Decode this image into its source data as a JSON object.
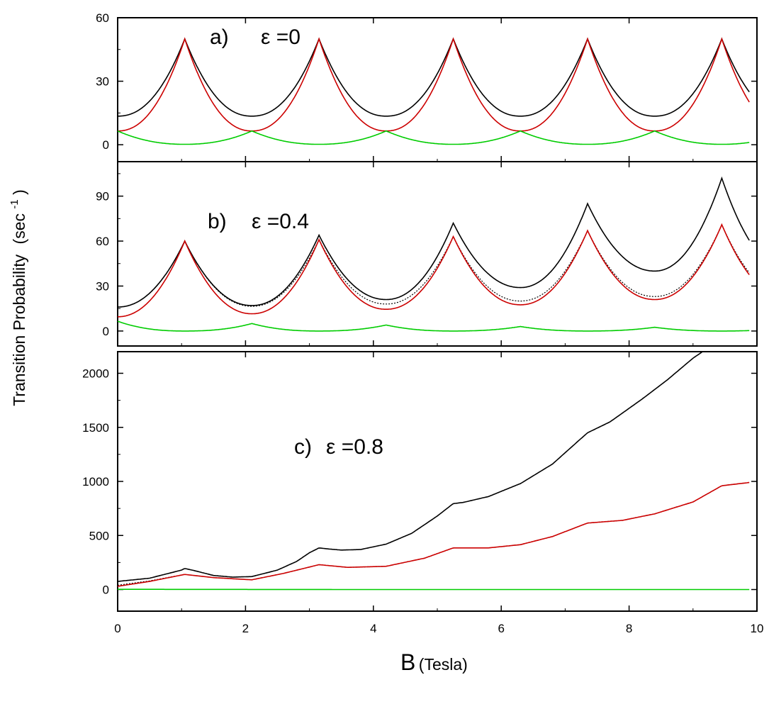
{
  "figure": {
    "ylabel": "Transition Probability",
    "ylabel_unit_open": "(sec",
    "ylabel_unit_exp": "-1",
    "ylabel_unit_close": ")",
    "xlabel_main": "B",
    "xlabel_unit": "(Tesla)"
  },
  "chart_data": [
    {
      "type": "line",
      "panel": "a",
      "label_letter": "a)",
      "label_eps": "ε =0",
      "xlim": [
        0,
        10
      ],
      "ylim": [
        -8,
        60
      ],
      "yticks": [
        0,
        30,
        60
      ],
      "ytick_labels": [
        "0",
        "30",
        "60"
      ],
      "xticks": [
        0,
        2,
        4,
        6,
        8,
        10
      ],
      "x_range": [
        0,
        9.88
      ],
      "resonances": [
        1.05,
        3.15,
        5.25,
        7.35,
        9.45
      ],
      "crossovers": [
        0,
        2.1,
        4.2,
        6.3,
        8.4
      ],
      "series": [
        {
          "color": "#000000",
          "style": "solid",
          "min": 13.5,
          "max": 50
        },
        {
          "color": "#cc0000",
          "style": "solid",
          "min": 6.5,
          "max": 50
        },
        {
          "color": "#00cc00",
          "style": "solid",
          "min": 0.2,
          "max": 6.5
        }
      ]
    },
    {
      "type": "line",
      "panel": "b",
      "label_letter": "b)",
      "label_eps": "ε =0.4",
      "xlim": [
        0,
        10
      ],
      "ylim": [
        -10,
        113
      ],
      "yticks": [
        0,
        30,
        60,
        90
      ],
      "ytick_labels": [
        "0",
        "30",
        "60",
        "90"
      ],
      "xticks": [
        0,
        2,
        4,
        6,
        8,
        10
      ],
      "x_range": [
        0,
        9.88
      ],
      "resonances": [
        1.05,
        3.15,
        5.25,
        7.35,
        9.45
      ],
      "crossovers": [
        0,
        2.1,
        4.2,
        6.3,
        8.4
      ],
      "series": [
        {
          "color": "#000000",
          "style": "solid",
          "mins": [
            16,
            17,
            21,
            29,
            40
          ],
          "peaks": [
            60,
            64,
            72,
            85,
            102
          ],
          "end": 70
        },
        {
          "color": "#000000",
          "style": "dotted",
          "mins": [
            16,
            16.5,
            18,
            20,
            23
          ],
          "peaks": [
            60,
            61,
            63,
            67,
            71
          ],
          "end": 43
        },
        {
          "color": "#cc0000",
          "style": "solid",
          "mins": [
            9.5,
            11.5,
            14.5,
            17.5,
            21
          ],
          "peaks": [
            60,
            61,
            63,
            67,
            71
          ],
          "end": 43
        },
        {
          "color": "#00cc00",
          "style": "solid",
          "cross_peaks": [
            6.5,
            5,
            4,
            3,
            2.5
          ]
        }
      ]
    },
    {
      "type": "line",
      "panel": "c",
      "label_letter": "c)",
      "label_eps": "ε =0.8",
      "xlim": [
        0,
        10
      ],
      "ylim": [
        -200,
        2200
      ],
      "yticks": [
        0,
        500,
        1000,
        1500,
        2000
      ],
      "ytick_labels": [
        "0",
        "500",
        "1000",
        "1500",
        "2000"
      ],
      "xticks": [
        0,
        2,
        4,
        6,
        8,
        10
      ],
      "xtick_labels": [
        "0",
        "2",
        "4",
        "6",
        "8",
        "10"
      ],
      "series": [
        {
          "color": "#000000",
          "style": "solid",
          "x": [
            0,
            0.5,
            1.0,
            1.05,
            1.2,
            1.5,
            1.8,
            2.1,
            2.5,
            2.8,
            3.0,
            3.15,
            3.3,
            3.5,
            3.8,
            4.2,
            4.6,
            5.0,
            5.25,
            5.4,
            5.8,
            6.3,
            6.8,
            7.35,
            7.7,
            8.2,
            8.6,
            9.0,
            9.15
          ],
          "y": [
            75,
            105,
            180,
            195,
            175,
            130,
            115,
            120,
            180,
            260,
            340,
            385,
            375,
            365,
            370,
            420,
            520,
            680,
            795,
            805,
            860,
            980,
            1160,
            1450,
            1550,
            1760,
            1940,
            2140,
            2200
          ]
        },
        {
          "color": "#000000",
          "style": "dotted",
          "x": [
            0,
            0.5,
            1.05,
            1.5,
            2.1,
            2.6,
            3.15,
            3.6,
            4.2,
            4.8,
            5.25,
            5.8,
            6.3,
            6.8,
            7.35,
            7.9,
            8.4,
            9.0,
            9.45,
            9.88
          ],
          "y": [
            40,
            80,
            140,
            110,
            90,
            150,
            230,
            205,
            215,
            290,
            385,
            385,
            415,
            490,
            615,
            640,
            700,
            810,
            960,
            990
          ]
        },
        {
          "color": "#cc0000",
          "style": "solid",
          "x": [
            0,
            0.5,
            1.05,
            1.5,
            2.1,
            2.6,
            3.15,
            3.6,
            4.2,
            4.8,
            5.25,
            5.8,
            6.3,
            6.8,
            7.35,
            7.9,
            8.4,
            9.0,
            9.45,
            9.88
          ],
          "y": [
            30,
            75,
            140,
            110,
            90,
            150,
            230,
            205,
            215,
            290,
            385,
            385,
            415,
            490,
            615,
            640,
            700,
            810,
            960,
            990
          ]
        },
        {
          "color": "#00cc00",
          "style": "solid",
          "x": [
            0,
            2,
            4,
            6,
            8,
            9.88
          ],
          "y": [
            2,
            1,
            0,
            0,
            0,
            0
          ]
        }
      ]
    }
  ]
}
